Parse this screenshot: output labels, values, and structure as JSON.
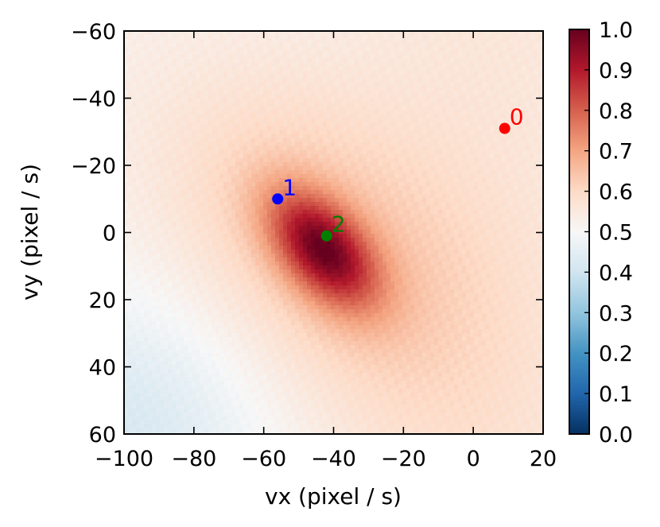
{
  "chart_data": {
    "type": "heatmap",
    "title": "",
    "xlabel": "vx (pixel / s)",
    "ylabel": "vy (pixel / s)",
    "xlim": [
      -100,
      20
    ],
    "ylim": [
      60,
      -60
    ],
    "x_ticks": [
      -100,
      -80,
      -60,
      -40,
      -20,
      0,
      20
    ],
    "x_tick_labels": [
      "−100",
      "−80",
      "−60",
      "−40",
      "−20",
      "0",
      "20"
    ],
    "y_ticks": [
      -60,
      -40,
      -20,
      0,
      20,
      40,
      60
    ],
    "y_tick_labels": [
      "−60",
      "−40",
      "−20",
      "0",
      "20",
      "40",
      "60"
    ],
    "colormap": "RdBu_r",
    "colorbar": {
      "range": [
        0.0,
        1.0
      ],
      "ticks": [
        0.0,
        0.1,
        0.2,
        0.3,
        0.4,
        0.5,
        0.6,
        0.7,
        0.8,
        0.9,
        1.0
      ],
      "tick_labels": [
        "0.0",
        "0.1",
        "0.2",
        "0.3",
        "0.4",
        "0.5",
        "0.6",
        "0.7",
        "0.8",
        "0.9",
        "1.0"
      ]
    },
    "peak": {
      "vx": -43,
      "vy": 5,
      "value": 1.0
    },
    "points": [
      {
        "label": "0",
        "vx": 9,
        "vy": -31,
        "color": "#ff0000"
      },
      {
        "label": "1",
        "vx": -56,
        "vy": -10,
        "color": "#0000ff"
      },
      {
        "label": "2",
        "vx": -42,
        "vy": 1,
        "color": "#007f00"
      }
    ]
  }
}
